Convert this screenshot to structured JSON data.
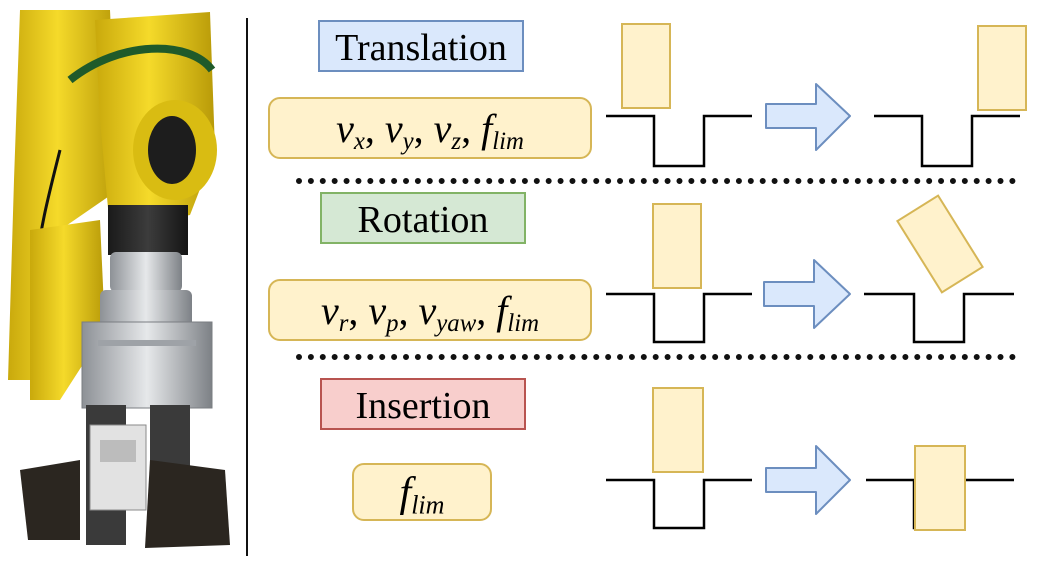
{
  "rows": [
    {
      "key": "translation",
      "label": "Translation",
      "params": {
        "parts": [
          {
            "base": "v",
            "sub": "x"
          },
          {
            "base": "v",
            "sub": "y"
          },
          {
            "base": "v",
            "sub": "z"
          },
          {
            "base": "f",
            "sub": "lim"
          }
        ],
        "separator": ", "
      }
    },
    {
      "key": "rotation",
      "label": "Rotation",
      "params": {
        "parts": [
          {
            "base": "v",
            "sub": "r"
          },
          {
            "base": "v",
            "sub": "p"
          },
          {
            "base": "v",
            "sub": "yaw"
          },
          {
            "base": "f",
            "sub": "lim"
          }
        ],
        "separator": ", "
      }
    },
    {
      "key": "insertion",
      "label": "Insertion",
      "params": {
        "parts": [
          {
            "base": "f",
            "sub": "lim"
          }
        ],
        "separator": ""
      }
    }
  ],
  "colors": {
    "translation_fill": "#dae8fc",
    "translation_stroke": "#6c8ebf",
    "rotation_fill": "#d5e8d4",
    "rotation_stroke": "#82b366",
    "insertion_fill": "#f8cecc",
    "insertion_stroke": "#b85450",
    "peg_fill": "#fff2cc",
    "peg_stroke": "#d6b656",
    "arrow_fill": "#dae8fc",
    "arrow_stroke": "#6c8ebf",
    "robot_yellow": "#f2d21c",
    "robot_silver": "#c9ccd0"
  }
}
